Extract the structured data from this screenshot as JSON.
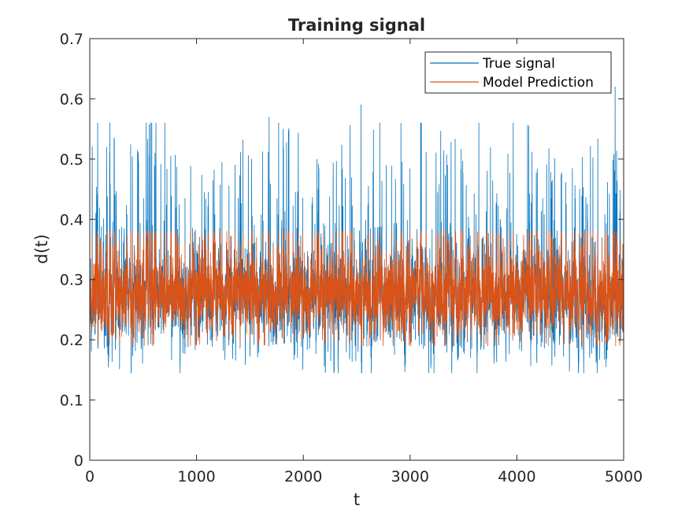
{
  "chart_data": {
    "type": "line",
    "title": "Training signal",
    "xlabel": "t",
    "ylabel": "d(t)",
    "xlim": [
      0,
      5000
    ],
    "ylim": [
      0,
      0.7
    ],
    "xticks": [
      0,
      1000,
      2000,
      3000,
      4000,
      5000
    ],
    "yticks": [
      0,
      0.1,
      0.2,
      0.3,
      0.4,
      0.5,
      0.6,
      0.7
    ],
    "xtick_labels": [
      "0",
      "1000",
      "2000",
      "3000",
      "4000",
      "5000"
    ],
    "ytick_labels": [
      "0",
      "0.1",
      "0.2",
      "0.3",
      "0.4",
      "0.5",
      "0.6",
      "0.7"
    ],
    "grid": false,
    "legend_position": "top-right",
    "series": [
      {
        "name": "True signal",
        "color": "#0072BD",
        "n_points": 5000,
        "start_value": 0,
        "typical_range": [
          0.15,
          0.55
        ],
        "notable_peaks": [
          {
            "x": 1680,
            "y": 0.57
          },
          {
            "x": 2540,
            "y": 0.59
          },
          {
            "x": 4920,
            "y": 0.62
          }
        ]
      },
      {
        "name": "Model Prediction",
        "color": "#D95319",
        "n_points": 5000,
        "typical_range": [
          0.19,
          0.38
        ]
      }
    ]
  }
}
